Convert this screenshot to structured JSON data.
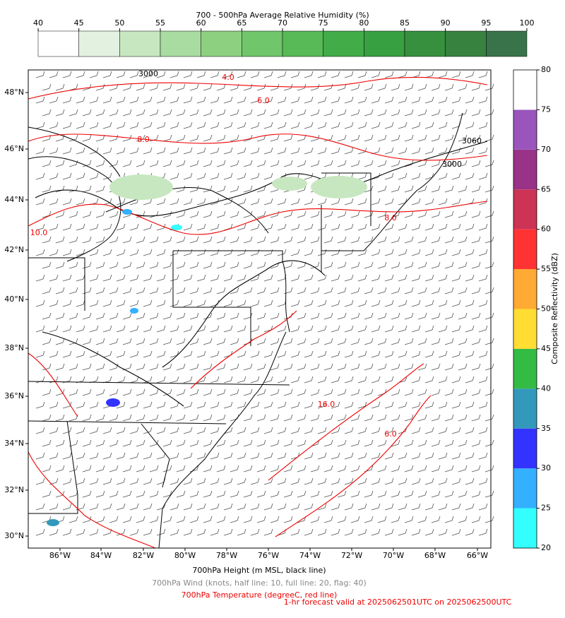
{
  "title": "700 - 500hPa Average Relative Humidity (%)",
  "humidity_colorbar": {
    "ticks": [
      40,
      45,
      50,
      55,
      60,
      65,
      70,
      75,
      80,
      85,
      90,
      95,
      100
    ],
    "colors": [
      "#ffffff",
      "#e3f2e0",
      "#c7e7c0",
      "#a9dca0",
      "#8dd180",
      "#70c66a",
      "#58b957",
      "#41ac48",
      "#37a040",
      "#37903e",
      "#38823f",
      "#397349"
    ]
  },
  "reflectivity_colorbar": {
    "label": "Composite Reflectivity (dBZ)",
    "ticks": [
      20,
      25,
      30,
      35,
      40,
      45,
      50,
      55,
      60,
      65,
      70,
      75,
      80
    ],
    "colors": [
      "#33ffff",
      "#33b0ff",
      "#3333ff",
      "#3399bb",
      "#33bb44",
      "#ffdd33",
      "#ffaa33",
      "#ff3333",
      "#cc3355",
      "#993388",
      "#9955bb",
      "#ffffff"
    ]
  },
  "map": {
    "lon_labels": [
      "86°W",
      "84°W",
      "82°W",
      "80°W",
      "78°W",
      "76°W",
      "74°W",
      "72°W",
      "70°W",
      "68°W",
      "66°W"
    ],
    "lat_labels": [
      "48°N",
      "46°N",
      "44°N",
      "42°N",
      "40°N",
      "38°N",
      "36°N",
      "34°N",
      "32°N",
      "30°N"
    ],
    "contour_labels": [
      "3000",
      "4.0",
      "6.0",
      "8.0",
      "10.0",
      "3060",
      "3000",
      "8.0",
      "16.0",
      "6.0"
    ]
  },
  "footer": {
    "height": "700hPa Height (m MSL, black line)",
    "wind": "700hPa Wind (knots, half line: 10, full line: 20, flag: 40)",
    "temperature": "700hPa Temperature (degreeC, red line)",
    "valid": "1-hr forecast valid at 2025062501UTC on 2025062500UTC"
  }
}
